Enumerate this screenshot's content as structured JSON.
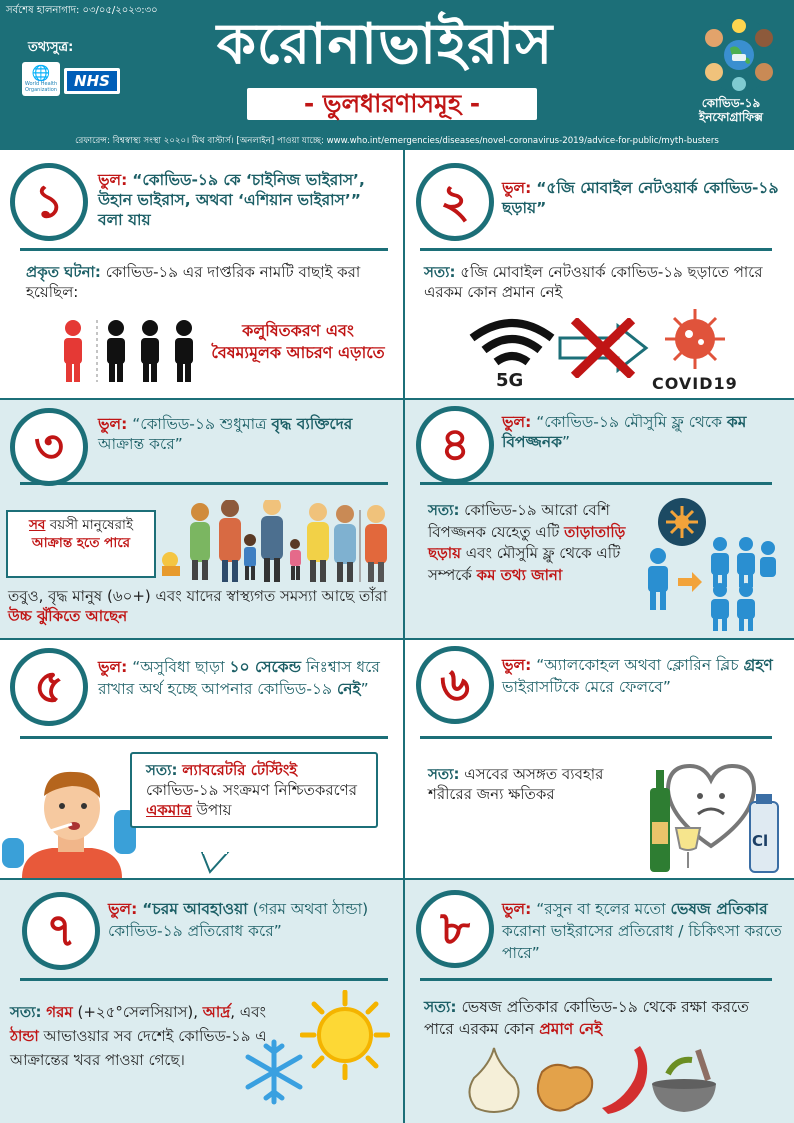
{
  "header": {
    "updated": "সর্বশেষ হালনাগাদ: ০৩/০৫/২০২৩:৩০",
    "sources_label": "তথ্যসুত্র:",
    "who_label": "World Health Organization",
    "nhs_label": "NHS",
    "title": "করোনাভাইরাস",
    "subtitle": "- ভুলধারণাসমূহ -",
    "reference": "রেফারেন্স: বিশ্বস্বাস্থ্য সংস্থা ২০২০। মিথ বাস্টার্স। [অনলাইন] পাওয়া যাচ্ছে: www.who.int/emergencies/diseases/novel-coronavirus-2019/advice-for-public/myth-busters",
    "badge_line1": "কোভিড-১৯",
    "badge_line2": "ইনফোগ্রাফিক্স"
  },
  "colors": {
    "teal": "#1c6f78",
    "red": "#c01515",
    "tint": "#dcecef"
  },
  "cards": [
    {
      "num": "১",
      "myth_label": "ভুল:",
      "myth": "“কোভিড-১৯ কে ‘চাইনিজ ভাইরাস’, উহান ভাইরাস, অথবা ‘এশিয়ান ভাইরাস’” বলা যায়",
      "fact_label": "প্রকৃত ঘটনা:",
      "fact": "কোভিড-১৯ এর দাপ্তরিক নামটি বাছাই করা হয়েছিল:",
      "note": "কলুষিতকরণ এবং বৈষম্যমূলক আচরণ এড়াতে",
      "icons": [
        "person-red-icon",
        "person-black-icon"
      ]
    },
    {
      "num": "২",
      "myth_label": "ভুল:",
      "myth": "“৫জি মোবাইল নেটওয়ার্ক কোভিড-১৯ ছড়ায়”",
      "fact_label": "সত্য:",
      "fact": "৫জি মোবাইল নেটওয়ার্ক কোভিড-১৯ ছড়াতে পারে এরকম কোন প্রমান নেই",
      "label_5g": "5G",
      "label_covid": "COVID19"
    },
    {
      "num": "৩",
      "myth_label": "ভুল:",
      "myth_pre": "“কোভিড-১৯ শুধুমাত্র ",
      "myth_bold": "বৃদ্ধ ব্যক্তিদের",
      "myth_post": " আক্রান্ত করে”",
      "box_red1": "সব",
      "box_text1": " বয়সী মানুষেরাই ",
      "box_red2": "আক্রান্ত হতে পারে",
      "fact_pre": "তবুও, বৃদ্ধ মানুষ (৬০+) এবং যাদের স্বাস্থ্যগত সমস্যা আছে তাঁরা ",
      "fact_red": "উচ্চ ঝুঁকিতে আছেন"
    },
    {
      "num": "৪",
      "myth_label": "ভুল:",
      "myth_pre": "“কোভিড-১৯ মৌসুমি ফ্লু থেকে ",
      "myth_bold": "কম বিপজ্জনক",
      "myth_post": "”",
      "fact_label": "সত্য:",
      "fact_pre": "কোভিড-১৯ আরো বেশি বিপজ্জনক যেহেতু এটি ",
      "fact_red1": "তাড়াতাড়ি ছড়ায়",
      "fact_mid": " এবং মৌসুমি ফ্লু থেকে এটি সম্পর্কে ",
      "fact_red2": "কম তথ্য জানা"
    },
    {
      "num": "৫",
      "myth_label": "ভুল:",
      "myth_pre": "“অসুবিধা ছাড়া ",
      "myth_bold": "১০ সেকেন্ড",
      "myth_mid": " নিঃশ্বাস ধরে রাখার অর্থ হচ্ছে আপনার কোভিড-১৯ ",
      "myth_bold2": "নেই",
      "myth_post": "”",
      "fact_label": "সত্য:",
      "fact_red1": "ল্যাবরেটরি টেস্টিংই",
      "fact_mid": " কোভিড-১৯ সংক্রমণ নিশ্চিতকরণের ",
      "fact_red2": "একমাত্র",
      "fact_post": " উপায়"
    },
    {
      "num": "৬",
      "myth_label": "ভুল:",
      "myth_pre": "“অ্যালকোহল অথবা ক্লোরিন ব্লিচ ",
      "myth_bold": "গ্রহণ",
      "myth_post": " ভাইরাসটিকে মেরে ফেলবে”",
      "fact_label": "সত্য:",
      "fact": "এসবের অসঙ্গত ব্যবহার শরীরের জন্য ক্ষতিকর",
      "cl_label": "Cl"
    },
    {
      "num": "৭",
      "myth_label": "ভুল:",
      "myth_bold": "“চরম আবহাওয়া",
      "myth_post": " (গরম অথবা ঠান্ডা) কোভিড-১৯ প্রতিরোধ করে”",
      "fact_label": "সত্য:",
      "fact_red1": "গরম",
      "fact_t1": " (+২৫°সেলসিয়াস), ",
      "fact_red2": "আর্দ্র",
      "fact_t2": ", এবং ",
      "fact_red3": "ঠান্ডা",
      "fact_t3": " আভাওয়ার সব দেশেই কোভিড-১৯ এ আক্রান্তের খবর পাওয়া গেছে।"
    },
    {
      "num": "৮",
      "myth_label": "ভুল:",
      "myth_pre": "“রসুন বা হলের মতো ",
      "myth_bold": "ভেষজ প্রতিকার",
      "myth_post": " করোনা ভাইরাসের প্রতিরোধ / চিকিৎসা করতে পারে”",
      "fact_label": "সত্য:",
      "fact_pre": "ভেষজ প্রতিকার কোভিড-১৯ থেকে রক্ষা করতে পারে এরকম কোন ",
      "fact_red": "প্রমাণ নেই"
    }
  ]
}
